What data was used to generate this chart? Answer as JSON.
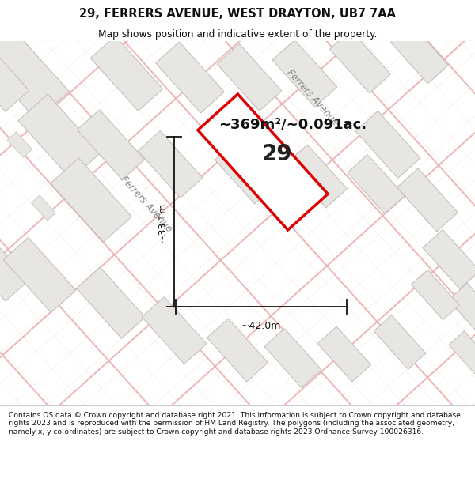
{
  "title_line1": "29, FERRERS AVENUE, WEST DRAYTON, UB7 7AA",
  "title_line2": "Map shows position and indicative extent of the property.",
  "footer_text": "Contains OS data © Crown copyright and database right 2021. This information is subject to Crown copyright and database rights 2023 and is reproduced with the permission of HM Land Registry. The polygons (including the associated geometry, namely x, y co-ordinates) are subject to Crown copyright and database rights 2023 Ordnance Survey 100026316.",
  "area_text": "~369m²/~0.091ac.",
  "property_number": "29",
  "dim_width": "~42.0m",
  "dim_height": "~33.1m",
  "street_label_top": "Ferrers Avenue",
  "street_label_left": "Ferrers Avenue",
  "map_bg": "#f7f5f2",
  "property_edge_color": "#dd0000",
  "title_bg": "#ffffff",
  "footer_bg": "#ffffff",
  "building_fc": "#e8e6e3",
  "building_ec": "#c0bcb8",
  "road_color_main": "#f0a0a0",
  "road_color_thin": "#f4c0c0"
}
